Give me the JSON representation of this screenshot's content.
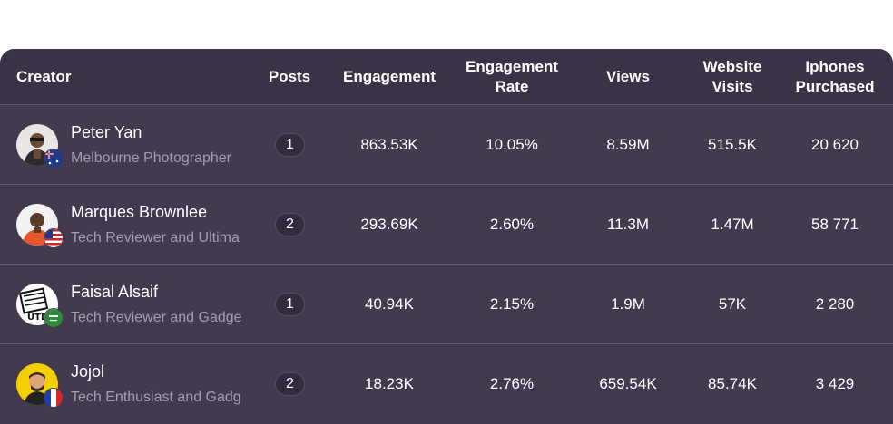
{
  "header": {
    "creator": "Creator",
    "posts": "Posts",
    "engagement": "Engagement",
    "engagement_rate_1": "Engagement",
    "engagement_rate_2": "Rate",
    "views": "Views",
    "website_visits_1": "Website",
    "website_visits_2": "Visits",
    "iphones_purchased_1": "Iphones",
    "iphones_purchased_2": "Purchased"
  },
  "rows": [
    {
      "name": "Peter Yan",
      "subtitle": "Melbourne Photographer",
      "flag_icon": "australia-flag-icon",
      "posts": "1",
      "engagement": "863.53K",
      "engagement_rate": "10.05%",
      "views": "8.59M",
      "website_visits": "515.5K",
      "iphones_purchased": "20 620"
    },
    {
      "name": "Marques Brownlee",
      "subtitle": "Tech Reviewer and Ultima",
      "flag_icon": "usa-flag-icon",
      "posts": "2",
      "engagement": "293.69K",
      "engagement_rate": "2.60%",
      "views": "11.3M",
      "website_visits": "1.47M",
      "iphones_purchased": "58 771"
    },
    {
      "name": "Faisal Alsaif",
      "subtitle": "Tech Reviewer and Gadge",
      "flag_icon": "saudi-flag-icon",
      "posts": "1",
      "engagement": "40.94K",
      "engagement_rate": "2.15%",
      "views": "1.9M",
      "website_visits": "57K",
      "iphones_purchased": "2 280"
    },
    {
      "name": "Jojol",
      "subtitle": "Tech Enthusiast and Gadg",
      "flag_icon": "france-flag-icon",
      "posts": "2",
      "engagement": "18.23K",
      "engagement_rate": "2.76%",
      "views": "659.54K",
      "website_visits": "85.74K",
      "iphones_purchased": "3 429"
    }
  ],
  "colors": {
    "card": "#433a4f",
    "header": "#3b3247",
    "divider": "#5e5569",
    "subtitle": "#a39cad"
  }
}
